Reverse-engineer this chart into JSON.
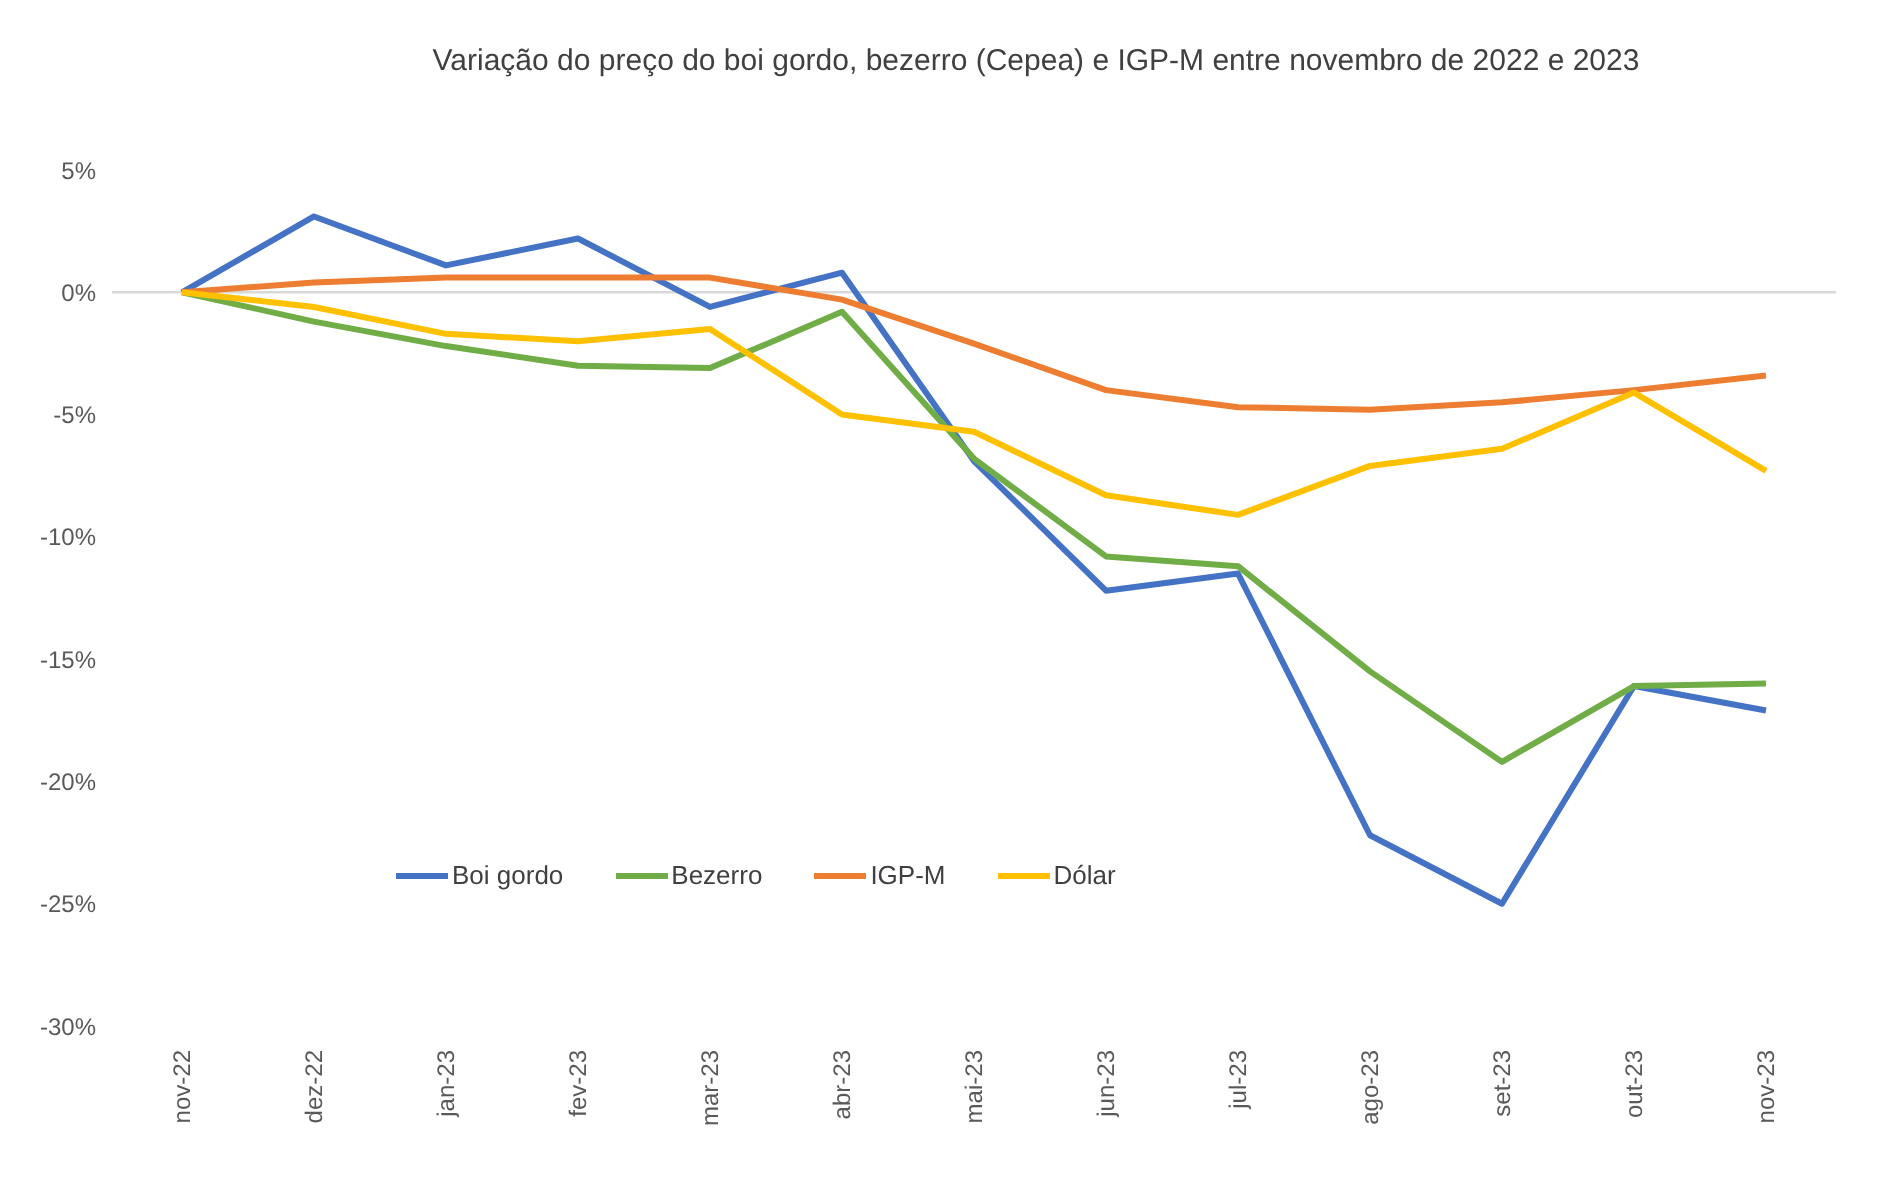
{
  "chart_data": {
    "type": "line",
    "title": "Variação do preço do boi gordo, bezerro (Cepea) e IGP-M entre novembro de 2022 e 2023",
    "categories": [
      "nov-22",
      "dez-22",
      "jan-23",
      "fev-23",
      "mar-23",
      "abr-23",
      "mai-23",
      "jun-23",
      "jul-23",
      "ago-23",
      "set-23",
      "out-23",
      "nov-23"
    ],
    "series": [
      {
        "name": "Boi gordo",
        "color": "#4472c4",
        "values": [
          0,
          3.1,
          1.1,
          2.2,
          -0.6,
          0.8,
          -6.9,
          -12.2,
          -11.5,
          -22.2,
          -25.0,
          -16.1,
          -17.1
        ]
      },
      {
        "name": "Bezerro",
        "color": "#70ad47",
        "values": [
          0,
          -1.2,
          -2.2,
          -3.0,
          -3.1,
          -0.8,
          -6.8,
          -10.8,
          -11.2,
          -15.5,
          -19.2,
          -16.1,
          -16.0
        ]
      },
      {
        "name": "IGP-M",
        "color": "#ed7d31",
        "values": [
          0,
          0.4,
          0.6,
          0.6,
          0.6,
          -0.3,
          -2.1,
          -4.0,
          -4.7,
          -4.8,
          -4.5,
          -4.0,
          -3.4
        ]
      },
      {
        "name": "Dólar",
        "color": "#ffc000",
        "values": [
          0,
          -0.6,
          -1.7,
          -2.0,
          -1.5,
          -5.0,
          -5.7,
          -8.3,
          -9.1,
          -7.1,
          -6.4,
          -4.1,
          -7.3
        ]
      }
    ],
    "ylim": [
      -30,
      5
    ],
    "yticks": [
      {
        "value": -30,
        "label": "-30%"
      },
      {
        "value": -25,
        "label": "-25%"
      },
      {
        "value": -20,
        "label": "-20%"
      },
      {
        "value": -15,
        "label": "-15%"
      },
      {
        "value": -10,
        "label": "-10%"
      },
      {
        "value": -5,
        "label": "-5%"
      },
      {
        "value": 0,
        "label": "0%"
      },
      {
        "value": 5,
        "label": "5%"
      }
    ],
    "ref_lines": [
      {
        "axis": "y",
        "value": 0,
        "color": "#d9d9d9"
      }
    ],
    "grid": false,
    "legend": "bottom left",
    "marker": "none",
    "line_style": "solid"
  }
}
